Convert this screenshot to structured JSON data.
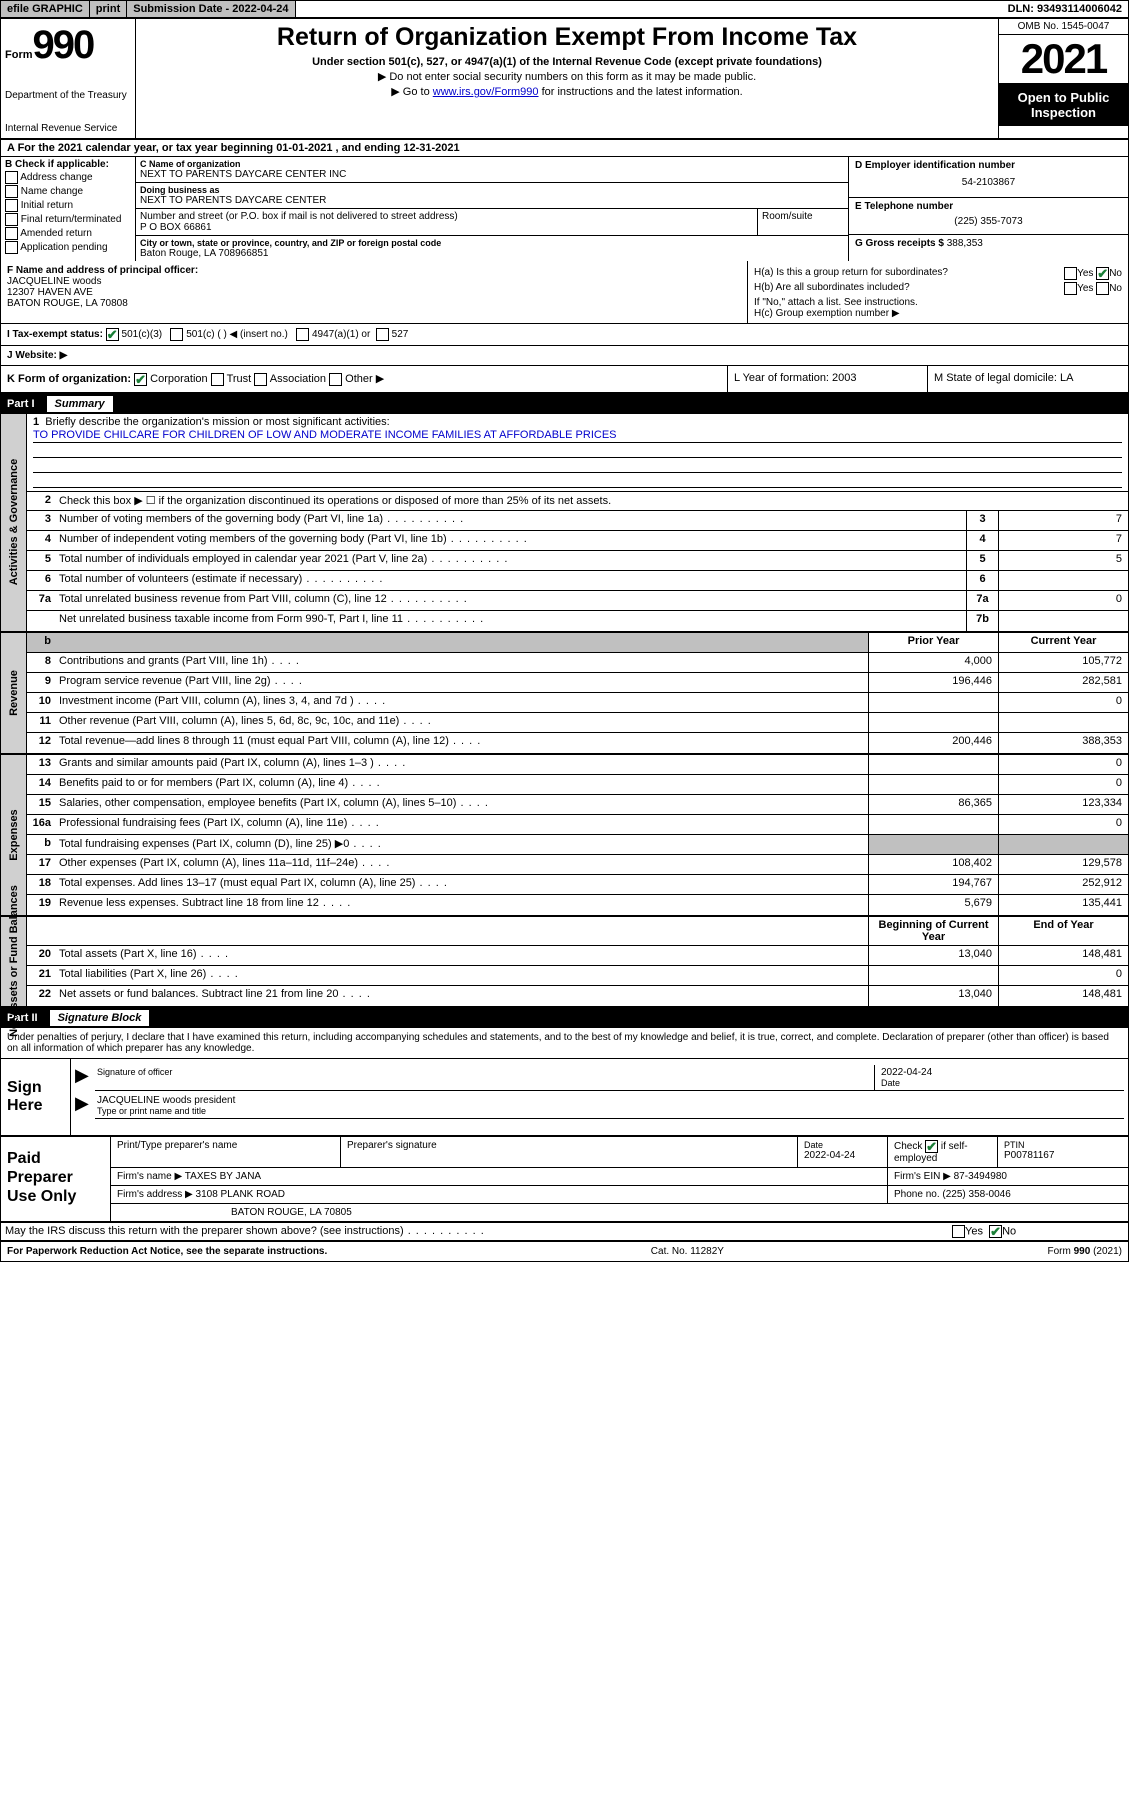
{
  "topbar": {
    "efile": "efile GRAPHIC",
    "print": "print",
    "subdate_lbl": "Submission Date - 2022-04-24",
    "dln": "DLN: 93493114006042"
  },
  "header": {
    "form_word": "Form",
    "form_num": "990",
    "dept": "Department of the Treasury",
    "irs": "Internal Revenue Service",
    "title": "Return of Organization Exempt From Income Tax",
    "sub": "Under section 501(c), 527, or 4947(a)(1) of the Internal Revenue Code (except private foundations)",
    "note1": "▶ Do not enter social security numbers on this form as it may be made public.",
    "note2_pre": "▶ Go to ",
    "note2_link": "www.irs.gov/Form990",
    "note2_post": " for instructions and the latest information.",
    "omb": "OMB No. 1545-0047",
    "year": "2021",
    "open": "Open to Public Inspection"
  },
  "a_line": "A For the 2021 calendar year, or tax year beginning 01-01-2021    , and ending 12-31-2021",
  "b": {
    "lbl": "B Check if applicable:",
    "opts": [
      "Address change",
      "Name change",
      "Initial return",
      "Final return/terminated",
      "Amended return",
      "Application pending"
    ]
  },
  "c": {
    "name_lbl": "C Name of organization",
    "name": "NEXT TO PARENTS DAYCARE CENTER INC",
    "dba_lbl": "Doing business as",
    "dba": "NEXT TO PARENTS DAYCARE CENTER",
    "street_lbl": "Number and street (or P.O. box if mail is not delivered to street address)",
    "street": "P O BOX 66861",
    "room_lbl": "Room/suite",
    "city_lbl": "City or town, state or province, country, and ZIP or foreign postal code",
    "city": "Baton Rouge, LA  708966851"
  },
  "d": {
    "lbl": "D Employer identification number",
    "val": "54-2103867"
  },
  "e": {
    "lbl": "E Telephone number",
    "val": "(225) 355-7073"
  },
  "g": {
    "lbl": "G Gross receipts $",
    "val": "388,353"
  },
  "f": {
    "lbl": "F Name and address of principal officer:",
    "name": "JACQUELINE woods",
    "addr1": "12307 HAVEN AVE",
    "addr2": "BATON ROUGE, LA  70808"
  },
  "h": {
    "ha": "H(a)  Is this a group return for subordinates?",
    "hb": "H(b)  Are all subordinates included?",
    "hb_note": "If \"No,\" attach a list. See instructions.",
    "hc": "H(c)  Group exemption number ▶",
    "yes": "Yes",
    "no": "No"
  },
  "i": {
    "lbl": "I    Tax-exempt status:",
    "c3": "501(c)(3)",
    "c": "501(c) (   ) ◀ (insert no.)",
    "a1": "4947(a)(1) or",
    "s527": "527"
  },
  "j": {
    "lbl": "J    Website: ▶"
  },
  "k": {
    "lbl": "K Form of organization:",
    "corp": "Corporation",
    "trust": "Trust",
    "assoc": "Association",
    "other": "Other ▶"
  },
  "l": {
    "lbl": "L Year of formation: 2003"
  },
  "m": {
    "lbl": "M State of legal domicile: LA"
  },
  "part1": {
    "num": "Part I",
    "title": "Summary"
  },
  "summary": {
    "l1_lbl": "Briefly describe the organization's mission or most significant activities:",
    "l1_val": "TO PROVIDE CHILCARE FOR CHILDREN OF LOW AND MODERATE INCOME FAMILIES AT AFFORDABLE PRICES",
    "l2": "Check this box ▶ ☐  if the organization discontinued its operations or disposed of more than 25% of its net assets.",
    "rows_gov": [
      {
        "n": "3",
        "d": "Number of voting members of the governing body (Part VI, line 1a)",
        "b": "3",
        "v": "7"
      },
      {
        "n": "4",
        "d": "Number of independent voting members of the governing body (Part VI, line 1b)",
        "b": "4",
        "v": "7"
      },
      {
        "n": "5",
        "d": "Total number of individuals employed in calendar year 2021 (Part V, line 2a)",
        "b": "5",
        "v": "5"
      },
      {
        "n": "6",
        "d": "Total number of volunteers (estimate if necessary)",
        "b": "6",
        "v": ""
      },
      {
        "n": "7a",
        "d": "Total unrelated business revenue from Part VIII, column (C), line 12",
        "b": "7a",
        "v": "0"
      },
      {
        "n": "",
        "d": "Net unrelated business taxable income from Form 990-T, Part I, line 11",
        "b": "7b",
        "v": ""
      }
    ],
    "h_prior": "Prior Year",
    "h_curr": "Current Year",
    "rows_rev": [
      {
        "n": "8",
        "d": "Contributions and grants (Part VIII, line 1h)",
        "p": "4,000",
        "c": "105,772"
      },
      {
        "n": "9",
        "d": "Program service revenue (Part VIII, line 2g)",
        "p": "196,446",
        "c": "282,581"
      },
      {
        "n": "10",
        "d": "Investment income (Part VIII, column (A), lines 3, 4, and 7d )",
        "p": "",
        "c": "0"
      },
      {
        "n": "11",
        "d": "Other revenue (Part VIII, column (A), lines 5, 6d, 8c, 9c, 10c, and 11e)",
        "p": "",
        "c": ""
      },
      {
        "n": "12",
        "d": "Total revenue—add lines 8 through 11 (must equal Part VIII, column (A), line 12)",
        "p": "200,446",
        "c": "388,353"
      }
    ],
    "rows_exp": [
      {
        "n": "13",
        "d": "Grants and similar amounts paid (Part IX, column (A), lines 1–3 )",
        "p": "",
        "c": "0"
      },
      {
        "n": "14",
        "d": "Benefits paid to or for members (Part IX, column (A), line 4)",
        "p": "",
        "c": "0"
      },
      {
        "n": "15",
        "d": "Salaries, other compensation, employee benefits (Part IX, column (A), lines 5–10)",
        "p": "86,365",
        "c": "123,334"
      },
      {
        "n": "16a",
        "d": "Professional fundraising fees (Part IX, column (A), line 11e)",
        "p": "",
        "c": "0"
      },
      {
        "n": "b",
        "d": "Total fundraising expenses (Part IX, column (D), line 25) ▶0",
        "p": "gray",
        "c": "gray"
      },
      {
        "n": "17",
        "d": "Other expenses (Part IX, column (A), lines 11a–11d, 11f–24e)",
        "p": "108,402",
        "c": "129,578"
      },
      {
        "n": "18",
        "d": "Total expenses. Add lines 13–17 (must equal Part IX, column (A), line 25)",
        "p": "194,767",
        "c": "252,912"
      },
      {
        "n": "19",
        "d": "Revenue less expenses. Subtract line 18 from line 12",
        "p": "5,679",
        "c": "135,441"
      }
    ],
    "h_beg": "Beginning of Current Year",
    "h_end": "End of Year",
    "rows_net": [
      {
        "n": "20",
        "d": "Total assets (Part X, line 16)",
        "p": "13,040",
        "c": "148,481"
      },
      {
        "n": "21",
        "d": "Total liabilities (Part X, line 26)",
        "p": "",
        "c": "0"
      },
      {
        "n": "22",
        "d": "Net assets or fund balances. Subtract line 21 from line 20",
        "p": "13,040",
        "c": "148,481"
      }
    ]
  },
  "sides": {
    "gov": "Activities & Governance",
    "rev": "Revenue",
    "exp": "Expenses",
    "net": "Net Assets or Fund Balances"
  },
  "part2": {
    "num": "Part II",
    "title": "Signature Block"
  },
  "sig": {
    "decl": "Under penalties of perjury, I declare that I have examined this return, including accompanying schedules and statements, and to the best of my knowledge and belief, it is true, correct, and complete. Declaration of preparer (other than officer) is based on all information of which preparer has any knowledge.",
    "here": "Sign Here",
    "sig_lbl": "Signature of officer",
    "date_lbl": "Date",
    "date_val": "2022-04-24",
    "name": "JACQUELINE woods  president",
    "name_lbl": "Type or print name and title"
  },
  "prep": {
    "label": "Paid Preparer Use Only",
    "r1": {
      "c1": "Print/Type preparer's name",
      "c2": "Preparer's signature",
      "c3_lbl": "Date",
      "c3": "2022-04-24",
      "c4": "Check ☑ if self-employed",
      "c5_lbl": "PTIN",
      "c5": "P00781167"
    },
    "r2": {
      "c1_lbl": "Firm's name     ▶",
      "c1": "TAXES BY JANA",
      "c2_lbl": "Firm's EIN ▶",
      "c2": "87-3494980"
    },
    "r3": {
      "c1_lbl": "Firm's address ▶",
      "c1": "3108 PLANK ROAD",
      "c2_lbl": "Phone no.",
      "c2": "(225) 358-0046"
    },
    "r4": {
      "c1": "BATON ROUGE, LA  70805"
    }
  },
  "footer": {
    "discuss": "May the IRS discuss this return with the preparer shown above? (see instructions)",
    "paperwork": "For Paperwork Reduction Act Notice, see the separate instructions.",
    "cat": "Cat. No. 11282Y",
    "formno": "Form 990 (2021)",
    "yes": "Yes",
    "no": "No"
  }
}
